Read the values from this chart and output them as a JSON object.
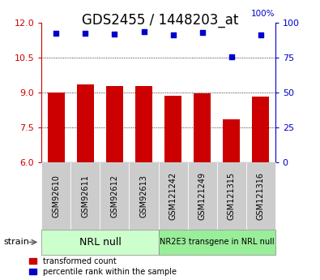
{
  "title": "GDS2455 / 1448203_at",
  "samples": [
    "GSM92610",
    "GSM92611",
    "GSM92612",
    "GSM92613",
    "GSM121242",
    "GSM121249",
    "GSM121315",
    "GSM121316"
  ],
  "bar_values": [
    9.0,
    9.35,
    9.28,
    9.27,
    8.85,
    8.95,
    7.85,
    8.82
  ],
  "scatter_values": [
    11.55,
    11.55,
    11.5,
    11.6,
    11.45,
    11.57,
    10.52,
    11.47
  ],
  "bar_color": "#cc0000",
  "scatter_color": "#0000cc",
  "ylim_left": [
    6,
    12
  ],
  "ylim_right": [
    0,
    100
  ],
  "yticks_left": [
    6,
    7.5,
    9,
    10.5,
    12
  ],
  "yticks_right": [
    0,
    25,
    50,
    75,
    100
  ],
  "grid_lines": [
    7.5,
    9,
    10.5
  ],
  "groups": [
    {
      "label": "NRL null",
      "indices": [
        0,
        1,
        2,
        3
      ],
      "color": "#ccffcc"
    },
    {
      "label": "NR2E3 transgene in NRL null",
      "indices": [
        4,
        5,
        6,
        7
      ],
      "color": "#99ee99"
    }
  ],
  "strain_label": "strain",
  "legend_bar": "transformed count",
  "legend_scatter": "percentile rank within the sample",
  "label_color_left": "#cc0000",
  "label_color_right": "#0000cc",
  "title_fontsize": 12,
  "tick_fontsize": 8,
  "bar_width": 0.6,
  "xlim": [
    -0.5,
    7.5
  ],
  "tick_label_bg": "#cccccc",
  "tick_label_fontsize": 7,
  "group_box_color1": "#ccffcc",
  "group_box_color2": "#99ee99",
  "group_label_fontsize1": 9,
  "group_label_fontsize2": 7
}
